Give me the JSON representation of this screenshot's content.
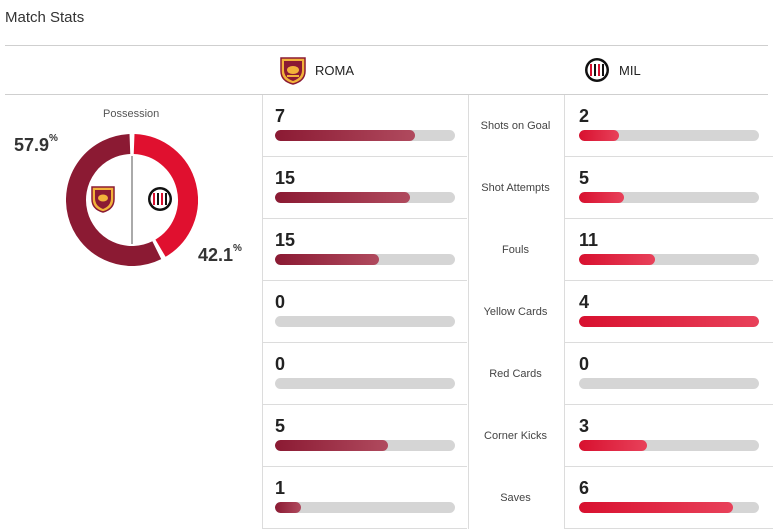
{
  "header": {
    "title": "Match Stats"
  },
  "teams": {
    "home": {
      "abbr": "ROMA",
      "color": "#8b1a33"
    },
    "away": {
      "abbr": "MIL",
      "color": "#d8102f"
    }
  },
  "possession": {
    "label": "Possession",
    "home_value": "57.9",
    "away_value": "42.1",
    "home_fraction": 0.579,
    "away_fraction": 0.421,
    "unit": "%"
  },
  "stats": [
    {
      "label": "Shots on Goal",
      "home": "7",
      "away": "2"
    },
    {
      "label": "Shot Attempts",
      "home": "15",
      "away": "5"
    },
    {
      "label": "Fouls",
      "home": "15",
      "away": "11"
    },
    {
      "label": "Yellow Cards",
      "home": "0",
      "away": "4"
    },
    {
      "label": "Red Cards",
      "home": "0",
      "away": "0"
    },
    {
      "label": "Corner Kicks",
      "home": "5",
      "away": "3"
    },
    {
      "label": "Saves",
      "home": "1",
      "away": "6"
    }
  ]
}
